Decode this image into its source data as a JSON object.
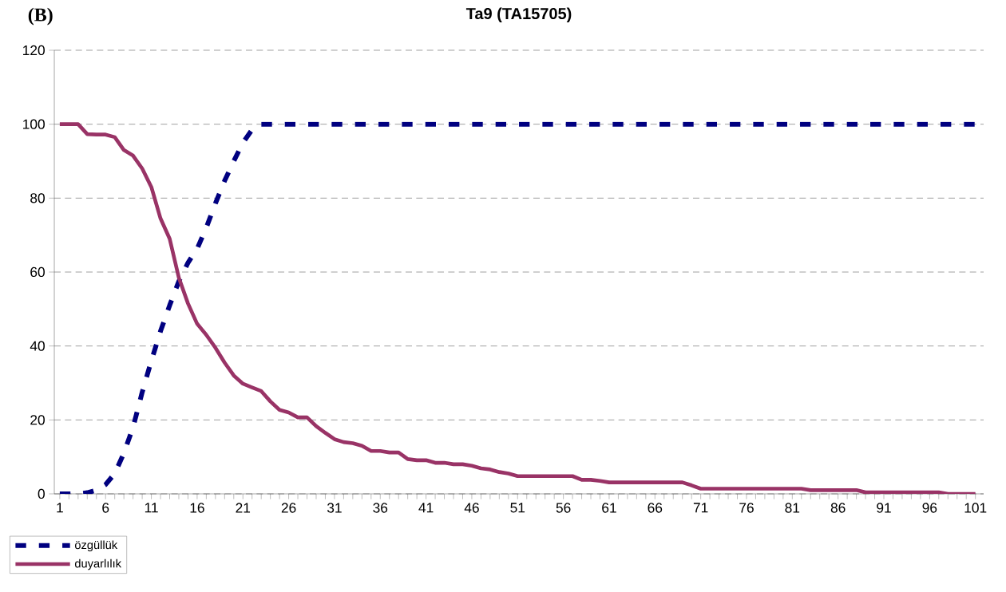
{
  "chart_data": {
    "type": "line",
    "title": "Ta9 (TA15705)",
    "annotations": [
      "**(B)**"
    ],
    "categories": [
      "1",
      null,
      null,
      null,
      null,
      "6",
      null,
      null,
      null,
      null,
      "11",
      null,
      null,
      null,
      null,
      "16",
      null,
      null,
      null,
      null,
      "21",
      null,
      null,
      null,
      null,
      "26",
      null,
      null,
      null,
      null,
      "31",
      null,
      null,
      null,
      null,
      "36",
      null,
      null,
      null,
      null,
      "41",
      null,
      null,
      null,
      null,
      "46",
      null,
      null,
      null,
      null,
      "51",
      null,
      null,
      null,
      null,
      "56",
      null,
      null,
      null,
      null,
      "61",
      null,
      null,
      null,
      null,
      "66",
      null,
      null,
      null,
      null,
      "71",
      null,
      null,
      null,
      null,
      "76",
      null,
      null,
      null,
      null,
      "81",
      null,
      null,
      null,
      null,
      "86",
      null,
      null,
      null,
      null,
      "91",
      null,
      null,
      null,
      null,
      "96",
      null,
      null,
      null,
      null,
      "101"
    ],
    "series": [
      {
        "name": "özgüllük",
        "color": "#000080",
        "line_style": "dashed",
        "values": [
          0,
          0,
          0,
          0.3,
          1,
          2.5,
          5.5,
          11,
          18,
          27.5,
          36,
          44,
          51,
          57.5,
          62.5,
          66.3,
          72,
          78.6,
          84.7,
          90,
          95,
          98.5,
          100,
          100,
          100,
          100,
          100,
          100,
          100,
          100,
          100,
          100,
          100,
          100,
          100,
          100,
          100,
          100,
          100,
          100,
          100,
          100,
          100,
          100,
          100,
          100,
          100,
          100,
          100,
          100,
          100,
          100,
          100,
          100,
          100,
          100,
          100,
          100,
          100,
          100,
          100,
          100,
          100,
          100,
          100,
          100,
          100,
          100,
          100,
          100,
          100,
          100,
          100,
          100,
          100,
          100,
          100,
          100,
          100,
          100,
          100,
          100,
          100,
          100,
          100,
          100,
          100,
          100,
          100,
          100,
          100,
          100,
          100,
          100,
          100,
          100,
          100,
          100,
          100,
          100,
          100
        ]
      },
      {
        "name": "duyarlılık",
        "color": "#993366",
        "line_style": "solid",
        "values": [
          100,
          100,
          100,
          97.3,
          97.2,
          97.2,
          96.5,
          93,
          91.5,
          88,
          83,
          74.5,
          69,
          58.5,
          51.5,
          46,
          43,
          39.5,
          35.5,
          32,
          29.8,
          28.8,
          27.8,
          25,
          22.7,
          22,
          20.7,
          20.7,
          18.3,
          16.5,
          14.8,
          14,
          13.7,
          13,
          11.6,
          11.6,
          11.2,
          11.2,
          9.4,
          9.1,
          9.1,
          8.4,
          8.4,
          8,
          8,
          7.6,
          6.9,
          6.6,
          5.9,
          5.5,
          4.8,
          4.8,
          4.8,
          4.8,
          4.8,
          4.8,
          4.8,
          3.8,
          3.8,
          3.5,
          3.1,
          3.1,
          3.1,
          3.1,
          3.1,
          3.1,
          3.1,
          3.1,
          3.1,
          2.3,
          1.4,
          1.4,
          1.4,
          1.4,
          1.4,
          1.4,
          1.4,
          1.4,
          1.4,
          1.4,
          1.4,
          1.4,
          1,
          1,
          1,
          1,
          1,
          1,
          0.4,
          0.4,
          0.4,
          0.4,
          0.4,
          0.4,
          0.4,
          0.4,
          0.4,
          0,
          0,
          0,
          0
        ]
      }
    ],
    "ylim": [
      0,
      120
    ],
    "yticks": [
      0,
      20,
      40,
      60,
      80,
      100,
      120
    ],
    "grid": "y",
    "legend": "bottom left",
    "marker": "none"
  }
}
